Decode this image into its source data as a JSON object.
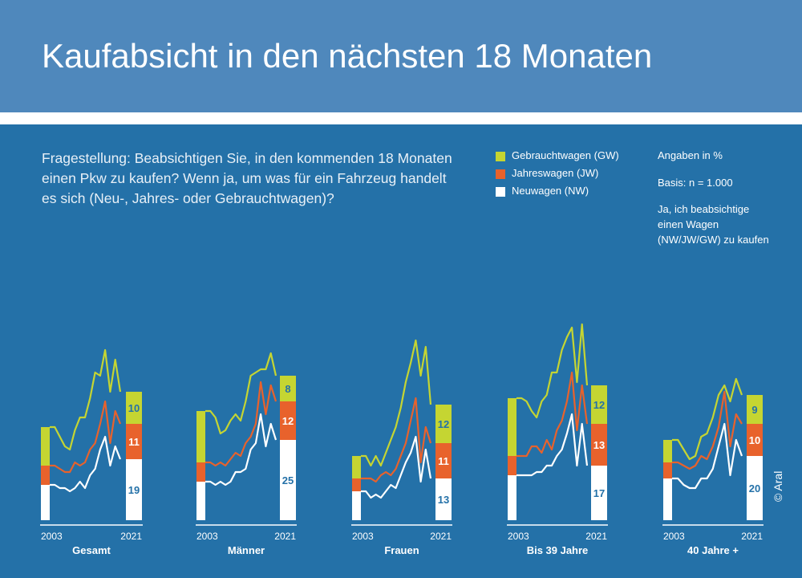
{
  "header": {
    "title": "Kaufabsicht in den nächsten 18 Monaten"
  },
  "question": "Fragestellung: Beabsichtigen Sie, in den kommenden 18 Monaten einen Pkw zu kaufen? Wenn ja, um was für ein Fahrzeug handelt es sich (Neu-, Jahres- oder Gebrauchtwagen)?",
  "legend": [
    {
      "label": "Gebrauchtwagen (GW)",
      "color": "#c5d532"
    },
    {
      "label": "Jahreswagen (JW)",
      "color": "#e8622c"
    },
    {
      "label": "Neuwagen (NW)",
      "color": "#ffffff"
    }
  ],
  "notes": {
    "unit": "Angaben in %",
    "basis": "Basis: n = 1.000",
    "definition": [
      "Ja, ich beabsichtige",
      "einen Wagen",
      "(NW/JW/GW) zu kaufen"
    ]
  },
  "copyright": "© Aral",
  "chart_data": [
    {
      "type": "area",
      "group": "Gesamt",
      "x_start": "2003",
      "x_end": "2021",
      "series": [
        {
          "name": "Neuwagen (NW)",
          "values": [
            11,
            11,
            10,
            10,
            9,
            10,
            12,
            10,
            14,
            16,
            22,
            26,
            17,
            23,
            19
          ]
        },
        {
          "name": "Jahreswagen (JW)",
          "values": [
            17,
            17,
            16,
            15,
            15,
            18,
            17,
            18,
            22,
            24,
            30,
            37,
            24,
            34,
            30
          ]
        },
        {
          "name": "Gebrauchtwagen (GW)",
          "values": [
            29,
            29,
            26,
            23,
            22,
            28,
            32,
            32,
            38,
            46,
            45,
            53,
            40,
            50,
            40
          ]
        }
      ],
      "bar_2021": {
        "NW": 19,
        "JW": 11,
        "GW": 10
      }
    },
    {
      "type": "area",
      "group": "Männer",
      "x_start": "2003",
      "x_end": "2021",
      "series": [
        {
          "name": "Neuwagen (NW)",
          "values": [
            12,
            12,
            11,
            12,
            11,
            12,
            15,
            15,
            16,
            22,
            24,
            33,
            23,
            30,
            25
          ]
        },
        {
          "name": "Jahreswagen (JW)",
          "values": [
            18,
            18,
            17,
            18,
            17,
            19,
            21,
            20,
            24,
            26,
            30,
            43,
            33,
            42,
            37
          ]
        },
        {
          "name": "Gebrauchtwagen (GW)",
          "values": [
            34,
            34,
            32,
            27,
            28,
            31,
            33,
            31,
            37,
            45,
            46,
            47,
            47,
            52,
            45
          ]
        }
      ],
      "bar_2021": {
        "NW": 25,
        "JW": 12,
        "GW": 8
      }
    },
    {
      "type": "area",
      "group": "Frauen",
      "x_start": "2003",
      "x_end": "2021",
      "series": [
        {
          "name": "Neuwagen (NW)",
          "values": [
            9,
            9,
            7,
            8,
            7,
            9,
            11,
            10,
            14,
            18,
            21,
            26,
            12,
            22,
            13
          ]
        },
        {
          "name": "Jahreswagen (JW)",
          "values": [
            13,
            13,
            13,
            12,
            14,
            15,
            14,
            16,
            20,
            24,
            31,
            38,
            18,
            29,
            24
          ]
        },
        {
          "name": "Gebrauchtwagen (GW)",
          "values": [
            20,
            20,
            17,
            20,
            17,
            21,
            25,
            29,
            35,
            43,
            49,
            56,
            45,
            54,
            36
          ]
        }
      ],
      "bar_2021": {
        "NW": 13,
        "JW": 11,
        "GW": 12
      }
    },
    {
      "type": "area",
      "group": "Bis 39 Jahre",
      "x_start": "2003",
      "x_end": "2021",
      "series": [
        {
          "name": "Neuwagen (NW)",
          "values": [
            14,
            14,
            14,
            14,
            15,
            15,
            17,
            17,
            20,
            22,
            27,
            33,
            17,
            30,
            17
          ]
        },
        {
          "name": "Jahreswagen (JW)",
          "values": [
            20,
            20,
            20,
            23,
            23,
            21,
            25,
            22,
            28,
            31,
            37,
            46,
            28,
            42,
            30
          ]
        },
        {
          "name": "Gebrauchtwagen (GW)",
          "values": [
            38,
            38,
            37,
            34,
            32,
            37,
            39,
            46,
            46,
            53,
            57,
            60,
            43,
            61,
            42
          ]
        }
      ],
      "bar_2021": {
        "NW": 17,
        "JW": 13,
        "GW": 12
      }
    },
    {
      "type": "area",
      "group": "40 Jahre +",
      "x_start": "2003",
      "x_end": "2021",
      "series": [
        {
          "name": "Neuwagen (NW)",
          "values": [
            13,
            13,
            11,
            10,
            10,
            13,
            13,
            16,
            23,
            30,
            14,
            25,
            20
          ]
        },
        {
          "name": "Jahreswagen (JW)",
          "values": [
            18,
            18,
            17,
            16,
            17,
            20,
            19,
            23,
            29,
            40,
            23,
            33,
            30
          ]
        },
        {
          "name": "Gebrauchtwagen (GW)",
          "values": [
            25,
            25,
            22,
            19,
            20,
            26,
            27,
            32,
            39,
            42,
            37,
            44,
            39
          ]
        }
      ],
      "bar_2021": {
        "NW": 20,
        "JW": 10,
        "GW": 9
      }
    }
  ]
}
